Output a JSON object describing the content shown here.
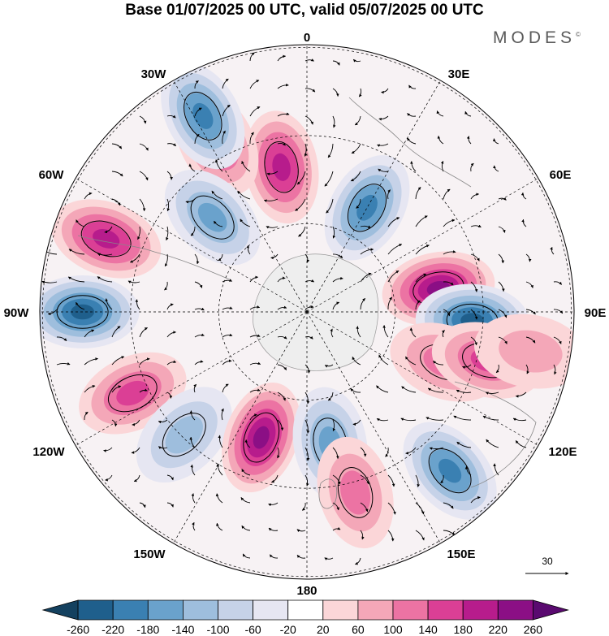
{
  "title": "Base 01/07/2025 00 UTC, valid 05/07/2025 00 UTC",
  "brand": "MODES",
  "brand_mark": "©",
  "longitude_labels": [
    "0",
    "30E",
    "60E",
    "90E",
    "120E",
    "150E",
    "180",
    "150W",
    "120W",
    "90W",
    "60W",
    "30W"
  ],
  "reference_vector": {
    "label": "30"
  },
  "colorbar": {
    "ticks": [
      "-260",
      "-220",
      "-180",
      "-140",
      "-100",
      "-60",
      "-20",
      "20",
      "60",
      "100",
      "140",
      "180",
      "220",
      "260"
    ],
    "colors": [
      "#14415f",
      "#1f5f8c",
      "#3a80b2",
      "#6aa2cc",
      "#9ebedd",
      "#c6d2e8",
      "#e6e6f2",
      "#ffffff",
      "#fbd6d8",
      "#f4a7b8",
      "#ec73a3",
      "#db3f95",
      "#b71c8c",
      "#8b0f85",
      "#5a0a70"
    ]
  },
  "map": {
    "projection": "south polar stereographic",
    "anomalies": [
      {
        "lon": 80,
        "r": 0.5,
        "value": 240
      },
      {
        "lon": 93,
        "r": 0.62,
        "value": -240
      },
      {
        "lon": 30,
        "r": 0.45,
        "value": -200
      },
      {
        "lon": -10,
        "r": 0.55,
        "value": 180
      },
      {
        "lon": -28,
        "r": 0.72,
        "value": 160
      },
      {
        "lon": -45,
        "r": 0.5,
        "value": -160
      },
      {
        "lon": -28,
        "r": 0.83,
        "value": -180
      },
      {
        "lon": -70,
        "r": 0.8,
        "value": 200
      },
      {
        "lon": -90,
        "r": 0.84,
        "value": -240
      },
      {
        "lon": -115,
        "r": 0.72,
        "value": 140
      },
      {
        "lon": -135,
        "r": 0.65,
        "value": -120
      },
      {
        "lon": -160,
        "r": 0.5,
        "value": 220
      },
      {
        "lon": 170,
        "r": 0.5,
        "value": -160
      },
      {
        "lon": 110,
        "r": 0.55,
        "value": 120
      },
      {
        "lon": 105,
        "r": 0.7,
        "value": 140
      },
      {
        "lon": 138,
        "r": 0.8,
        "value": -200
      },
      {
        "lon": 165,
        "r": 0.7,
        "value": 120
      },
      {
        "lon": 100,
        "r": 0.85,
        "value": 60
      }
    ]
  }
}
